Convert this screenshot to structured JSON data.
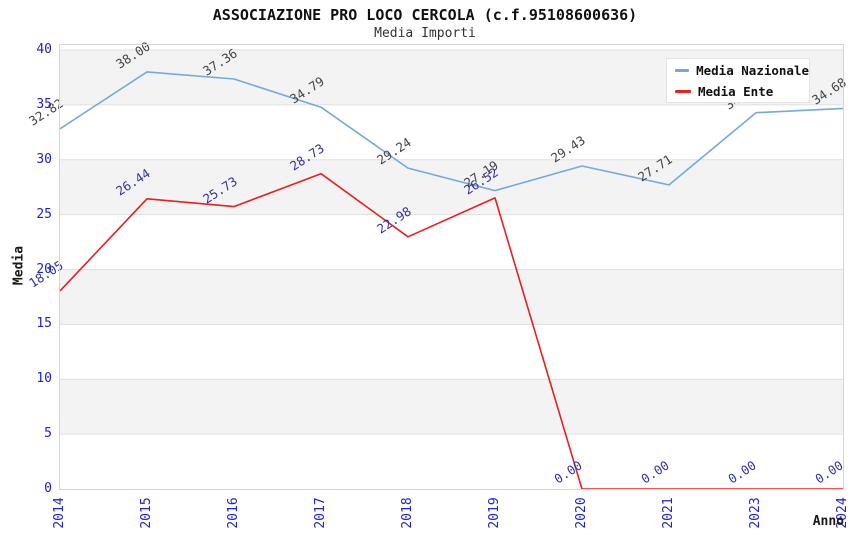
{
  "chart_data": {
    "type": "line",
    "title": "ASSOCIAZIONE PRO LOCO CERCOLA (c.f.95108600636)",
    "subtitle": "Media Importi",
    "xlabel": "Anno",
    "ylabel": "Media",
    "categories": [
      "2014",
      "2015",
      "2016",
      "2017",
      "2018",
      "2019",
      "2020",
      "2021",
      "2023",
      "2024"
    ],
    "series": [
      {
        "name": "Media Nazionale",
        "color": "#77a8d9",
        "label_color": "#444444",
        "values": [
          32.82,
          38.0,
          37.36,
          34.79,
          29.24,
          27.19,
          29.43,
          27.71,
          34.29,
          34.68
        ]
      },
      {
        "name": "Media Ente",
        "color": "#e62020",
        "label_color": "#3232a0",
        "values": [
          18.05,
          26.44,
          25.73,
          28.73,
          22.98,
          26.52,
          0.0,
          0.0,
          0.0,
          0.0
        ]
      }
    ],
    "ylim": [
      0,
      40
    ],
    "ytick_step": 5,
    "value_label_decimals": 2,
    "legend_position": "top-right",
    "grid": "horizontal-bands",
    "colors": {
      "band": "#f3f3f3",
      "gridline": "#e0e0e0",
      "frame": "#d6d6d6",
      "tick_label": "#2222cc",
      "axis_title": "#1a1a1a",
      "title": "#111111",
      "subtitle": "#333333",
      "background": "#ffffff"
    }
  }
}
